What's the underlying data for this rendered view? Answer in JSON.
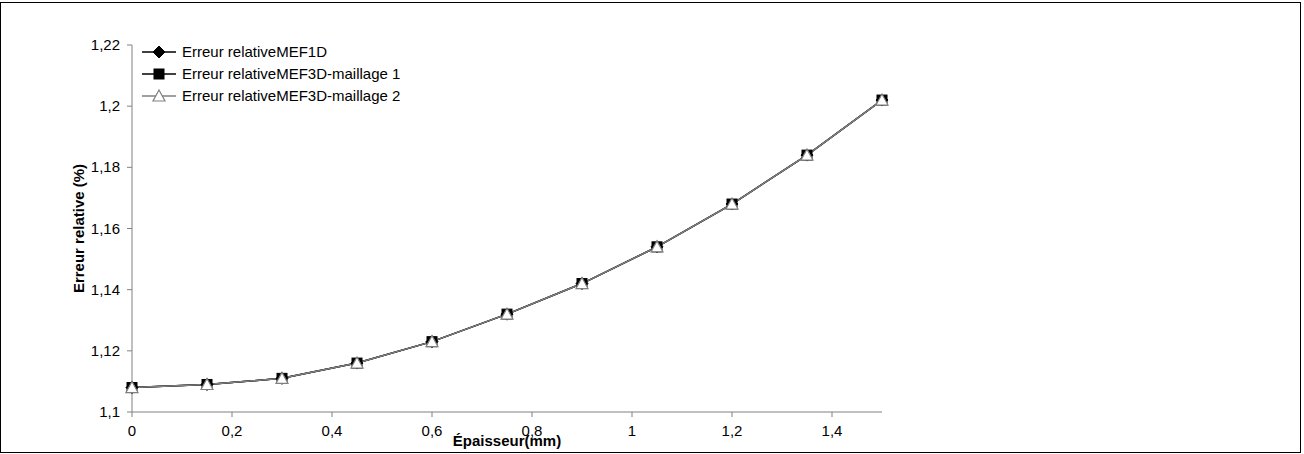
{
  "chart_data": {
    "type": "line",
    "x_label": "Épaisseur(mm)",
    "y_label": "Erreur relative (%)",
    "x": [
      0,
      0.15,
      0.3,
      0.45,
      0.6,
      0.75,
      0.9,
      1.05,
      1.2,
      1.35,
      1.5
    ],
    "series": [
      {
        "name": "Erreur relativeMEF1D",
        "color": "#000000",
        "marker": "diamond",
        "line_style": "solid",
        "values": [
          1.108,
          1.109,
          1.111,
          1.116,
          1.123,
          1.132,
          1.142,
          1.154,
          1.168,
          1.184,
          1.202
        ]
      },
      {
        "name": "Erreur relativeMEF3D-maillage 1",
        "color": "#000000",
        "marker": "square",
        "line_style": "solid",
        "values": [
          1.108,
          1.109,
          1.111,
          1.116,
          1.123,
          1.132,
          1.142,
          1.154,
          1.168,
          1.184,
          1.202
        ]
      },
      {
        "name": "Erreur relativeMEF3D-maillage 2",
        "color": "#808080",
        "marker": "triangle",
        "line_style": "solid",
        "values": [
          1.108,
          1.109,
          1.111,
          1.116,
          1.123,
          1.132,
          1.142,
          1.154,
          1.168,
          1.184,
          1.202
        ]
      }
    ],
    "xlim": [
      0,
      1.5
    ],
    "xticks": [
      0,
      {
        "value": 0.2,
        "label": "0,2"
      },
      {
        "value": 0.4,
        "label": "0,4"
      },
      {
        "value": 0.6,
        "label": "0,6"
      },
      {
        "value": 0.8,
        "label": "0,8"
      },
      1,
      {
        "value": 1.2,
        "label": "1,2"
      },
      {
        "value": 1.4,
        "label": "1,4"
      }
    ],
    "ylim": [
      1.1,
      1.22
    ],
    "yticks": [
      {
        "value": 1.1,
        "label": "1,1"
      },
      {
        "value": 1.12,
        "label": "1,12"
      },
      {
        "value": 1.14,
        "label": "1,14"
      },
      {
        "value": 1.16,
        "label": "1,16"
      },
      {
        "value": 1.18,
        "label": "1,18"
      },
      {
        "value": 1.2,
        "label": "1,2"
      },
      {
        "value": 1.22,
        "label": "1,22"
      }
    ],
    "grid": false,
    "legend": "top-left"
  }
}
